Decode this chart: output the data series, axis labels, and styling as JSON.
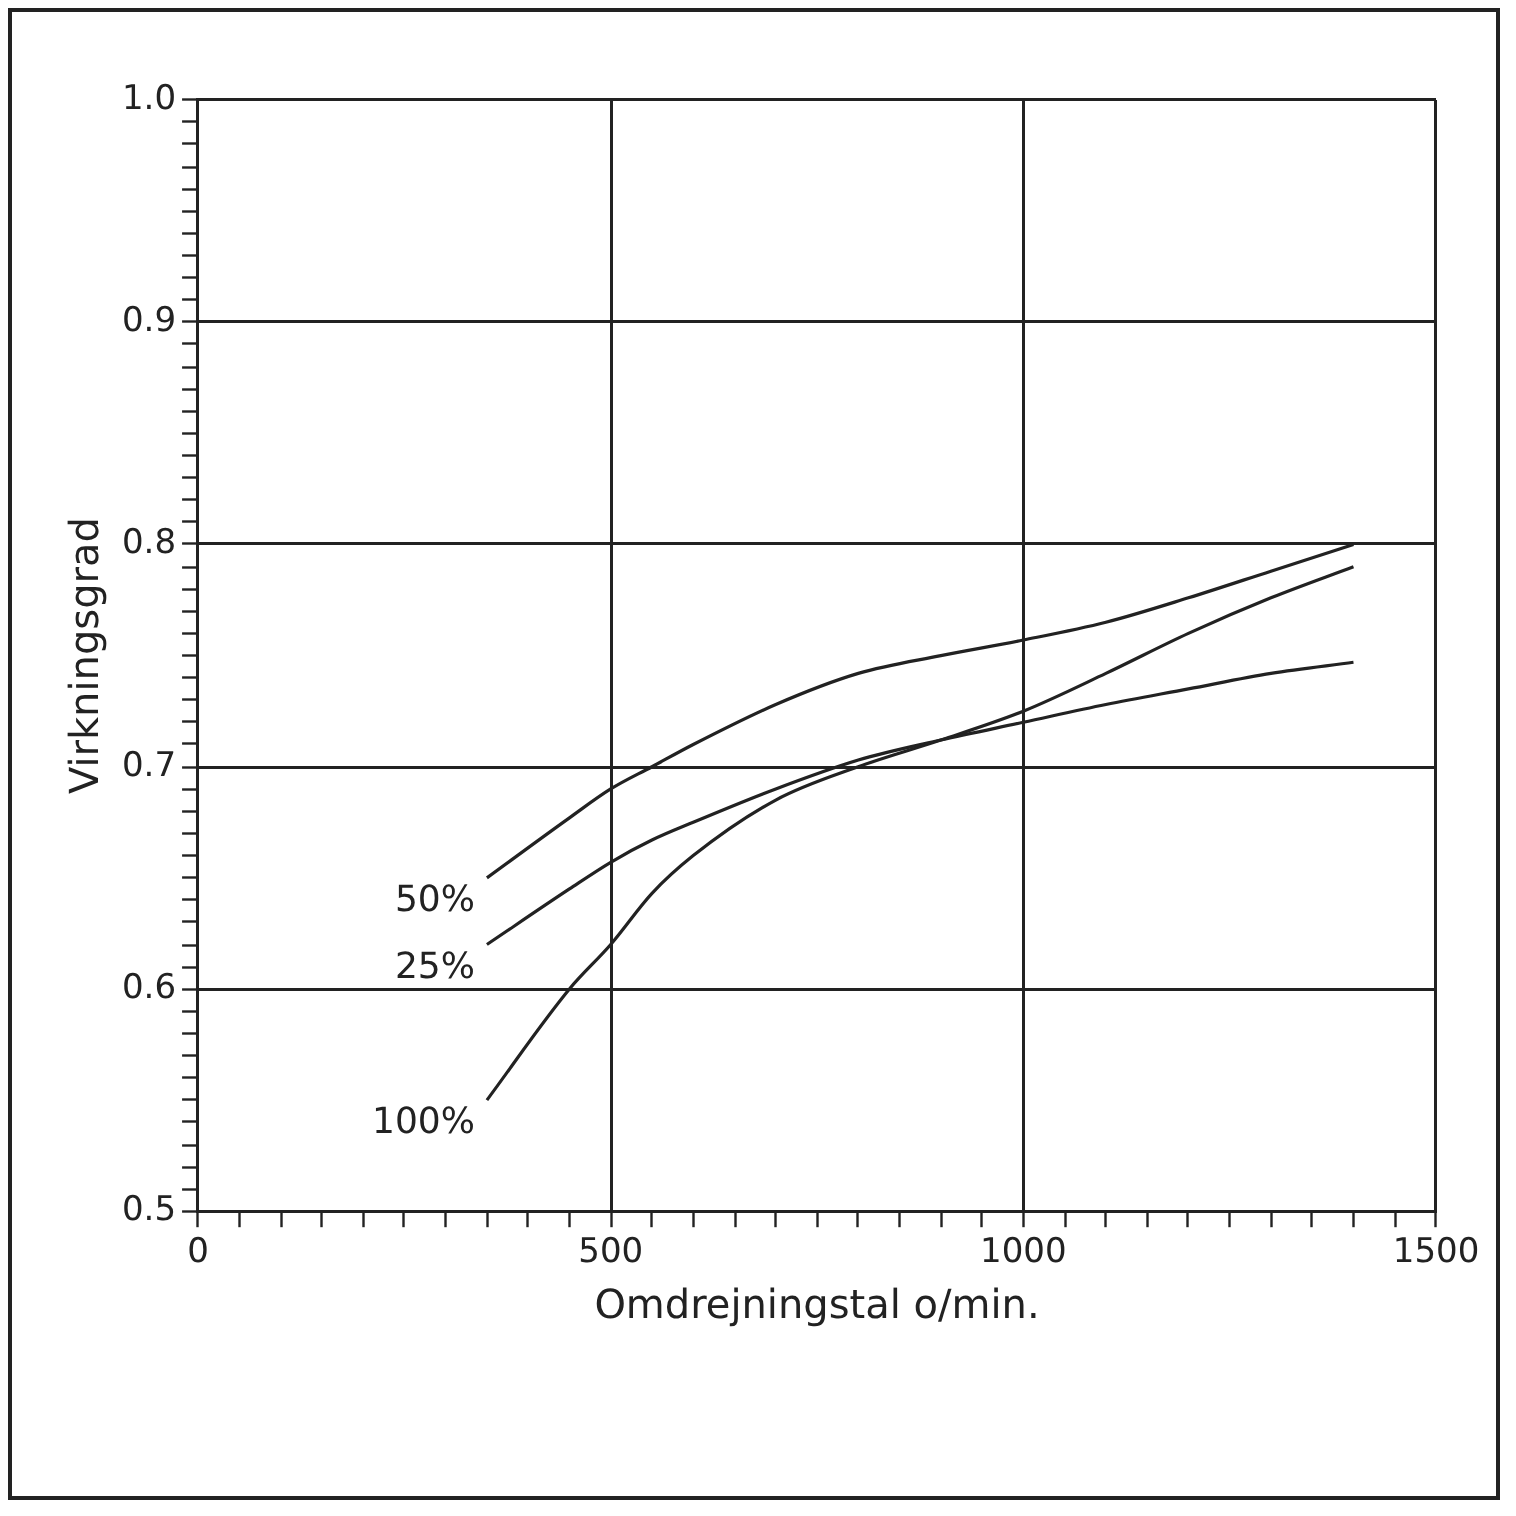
{
  "chart_data": {
    "type": "line",
    "xlabel": "Omdrejningstal o/min.",
    "ylabel": "Virkningsgrad",
    "xlim": [
      0,
      1500
    ],
    "ylim": [
      0.5,
      1.0
    ],
    "xticks": [
      0,
      {
        "value": 50,
        "label": null
      },
      {
        "value": 100,
        "label": null
      },
      {
        "value": 150,
        "label": null
      },
      {
        "value": 200,
        "label": null
      },
      {
        "value": 250,
        "label": null
      },
      {
        "value": 300,
        "label": null
      },
      {
        "value": 350,
        "label": null
      },
      {
        "value": 400,
        "label": null
      },
      {
        "value": 450,
        "label": null
      },
      500,
      {
        "value": 550,
        "label": null
      },
      {
        "value": 600,
        "label": null
      },
      {
        "value": 650,
        "label": null
      },
      {
        "value": 700,
        "label": null
      },
      {
        "value": 750,
        "label": null
      },
      {
        "value": 800,
        "label": null
      },
      {
        "value": 850,
        "label": null
      },
      {
        "value": 900,
        "label": null
      },
      {
        "value": 950,
        "label": null
      },
      1000,
      {
        "value": 1050,
        "label": null
      },
      {
        "value": 1100,
        "label": null
      },
      {
        "value": 1150,
        "label": null
      },
      {
        "value": 1200,
        "label": null
      },
      {
        "value": 1250,
        "label": null
      },
      {
        "value": 1300,
        "label": null
      },
      {
        "value": 1350,
        "label": null
      },
      {
        "value": 1400,
        "label": null
      },
      {
        "value": 1450,
        "label": null
      },
      1500
    ],
    "yticks": [
      {
        "value": 0.5,
        "label": "0.5"
      },
      {
        "value": 0.51,
        "label": null
      },
      {
        "value": 0.52,
        "label": null
      },
      {
        "value": 0.53,
        "label": null
      },
      {
        "value": 0.54,
        "label": null
      },
      {
        "value": 0.55,
        "label": null
      },
      {
        "value": 0.56,
        "label": null
      },
      {
        "value": 0.57,
        "label": null
      },
      {
        "value": 0.58,
        "label": null
      },
      {
        "value": 0.59,
        "label": null
      },
      {
        "value": 0.6,
        "label": "0.6"
      },
      {
        "value": 0.61,
        "label": null
      },
      {
        "value": 0.62,
        "label": null
      },
      {
        "value": 0.63,
        "label": null
      },
      {
        "value": 0.64,
        "label": null
      },
      {
        "value": 0.65,
        "label": null
      },
      {
        "value": 0.66,
        "label": null
      },
      {
        "value": 0.67,
        "label": null
      },
      {
        "value": 0.68,
        "label": null
      },
      {
        "value": 0.69,
        "label": null
      },
      {
        "value": 0.7,
        "label": "0.7"
      },
      {
        "value": 0.71,
        "label": null
      },
      {
        "value": 0.72,
        "label": null
      },
      {
        "value": 0.73,
        "label": null
      },
      {
        "value": 0.74,
        "label": null
      },
      {
        "value": 0.75,
        "label": null
      },
      {
        "value": 0.76,
        "label": null
      },
      {
        "value": 0.77,
        "label": null
      },
      {
        "value": 0.78,
        "label": null
      },
      {
        "value": 0.79,
        "label": null
      },
      {
        "value": 0.8,
        "label": "0.8"
      },
      {
        "value": 0.81,
        "label": null
      },
      {
        "value": 0.82,
        "label": null
      },
      {
        "value": 0.83,
        "label": null
      },
      {
        "value": 0.84,
        "label": null
      },
      {
        "value": 0.85,
        "label": null
      },
      {
        "value": 0.86,
        "label": null
      },
      {
        "value": 0.87,
        "label": null
      },
      {
        "value": 0.88,
        "label": null
      },
      {
        "value": 0.89,
        "label": null
      },
      {
        "value": 0.9,
        "label": "0.9"
      },
      {
        "value": 0.91,
        "label": null
      },
      {
        "value": 0.92,
        "label": null
      },
      {
        "value": 0.93,
        "label": null
      },
      {
        "value": 0.94,
        "label": null
      },
      {
        "value": 0.95,
        "label": null
      },
      {
        "value": 0.96,
        "label": null
      },
      {
        "value": 0.97,
        "label": null
      },
      {
        "value": 0.98,
        "label": null
      },
      {
        "value": 0.99,
        "label": null
      },
      {
        "value": 1.0,
        "label": "1.0"
      }
    ],
    "grid": true,
    "legend": false,
    "marker": "none",
    "line_style": "solid",
    "x": [
      350,
      450,
      500,
      550,
      600,
      700,
      800,
      900,
      1000,
      1100,
      1200,
      1300,
      1400
    ],
    "series": [
      {
        "name": "50%",
        "color": "#222222",
        "values": [
          0.65,
          0.677,
          0.69,
          0.7,
          0.71,
          0.728,
          0.742,
          0.75,
          0.757,
          0.765,
          0.776,
          0.788,
          0.8
        ]
      },
      {
        "name": "25%",
        "color": "#222222",
        "values": [
          0.62,
          0.645,
          0.657,
          0.667,
          0.675,
          0.69,
          0.703,
          0.712,
          0.72,
          0.728,
          0.735,
          0.742,
          0.747
        ]
      },
      {
        "name": "100%",
        "color": "#222222",
        "values": [
          0.55,
          0.6,
          0.62,
          0.643,
          0.66,
          0.685,
          0.7,
          0.712,
          0.725,
          0.742,
          0.76,
          0.776,
          0.79
        ]
      }
    ]
  }
}
